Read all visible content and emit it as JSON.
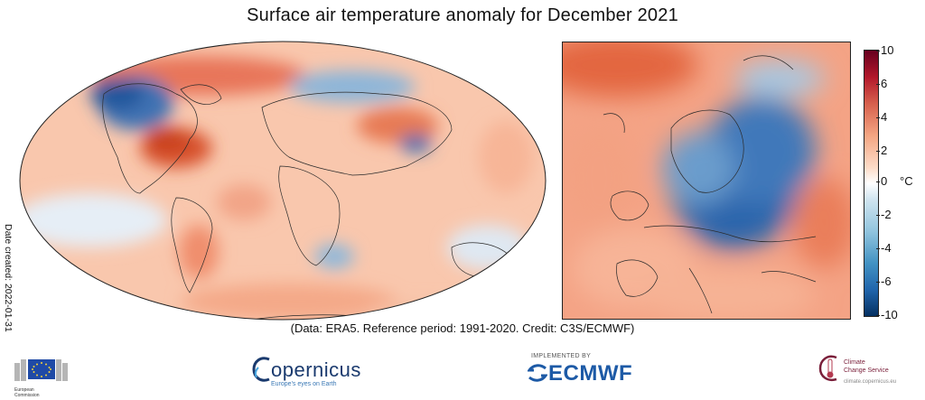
{
  "title": "Surface air temperature anomaly for December 2021",
  "date_created": "Date created: 2022-01-31",
  "credit": "(Data: ERA5.  Reference period: 1991-2020.  Credit: C3S/ECMWF)",
  "colorbar": {
    "ticks": [
      "10",
      "6",
      "4",
      "2",
      "0",
      "-2",
      "-4",
      "-6",
      "-10"
    ],
    "unit": "°C",
    "colors": [
      "#67001f",
      "#b2182b",
      "#d6604d",
      "#f4a582",
      "#fddbc7",
      "#ffffff",
      "#d1e5f0",
      "#92c5de",
      "#4393c3",
      "#2166ac",
      "#053061"
    ]
  },
  "logos": {
    "ec_line1": "European",
    "ec_line2": "Commission",
    "copernicus": "opernicus",
    "copernicus_tagline": "Europe's eyes on Earth",
    "ecmwf_tagline": "IMPLEMENTED BY",
    "ecmwf": "ECMWF",
    "c3s_line1": "Climate",
    "c3s_line2": "Change Service",
    "c3s_tagline": "climate.copernicus.eu"
  },
  "icons": {
    "ec": "eu-flag-icon",
    "copernicus": "copernicus-c-icon",
    "ecmwf": "ecmwf-arrows-icon",
    "c3s": "thermometer-icon"
  }
}
